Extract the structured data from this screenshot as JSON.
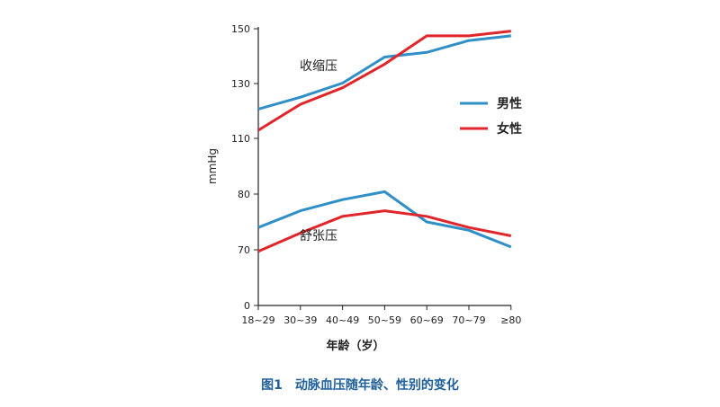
{
  "chart_data": {
    "type": "line",
    "categories": [
      "18~29",
      "30~39",
      "40~49",
      "50~59",
      "60~69",
      "70~79",
      "≥80"
    ],
    "y_ticks": [
      "0",
      "70",
      "80",
      "110",
      "130",
      "150"
    ],
    "ylabel": "mmHg",
    "xlabel": "年龄（岁）",
    "caption": "图1　动脉血压随年龄、性别的变化",
    "annotations": {
      "systolic": "收缩压",
      "diastolic": "舒张压"
    },
    "legend": {
      "position": "right",
      "entries": [
        "男性",
        "女性"
      ]
    },
    "colors": {
      "male": "#2f8fc6",
      "female": "#e0262a"
    },
    "series": [
      {
        "name": "男性",
        "group": "收缩压",
        "values": [
          116,
          121,
          127,
          138,
          140,
          145,
          147
        ]
      },
      {
        "name": "女性",
        "group": "收缩压",
        "values": [
          107,
          118,
          125,
          135,
          147,
          147,
          149
        ]
      },
      {
        "name": "男性",
        "group": "舒张压",
        "values": [
          74,
          77,
          79,
          81,
          75,
          73.5,
          70.5
        ]
      },
      {
        "name": "女性",
        "group": "舒张压",
        "values": [
          68,
          73,
          76,
          77,
          76,
          74,
          72.5
        ]
      }
    ]
  }
}
